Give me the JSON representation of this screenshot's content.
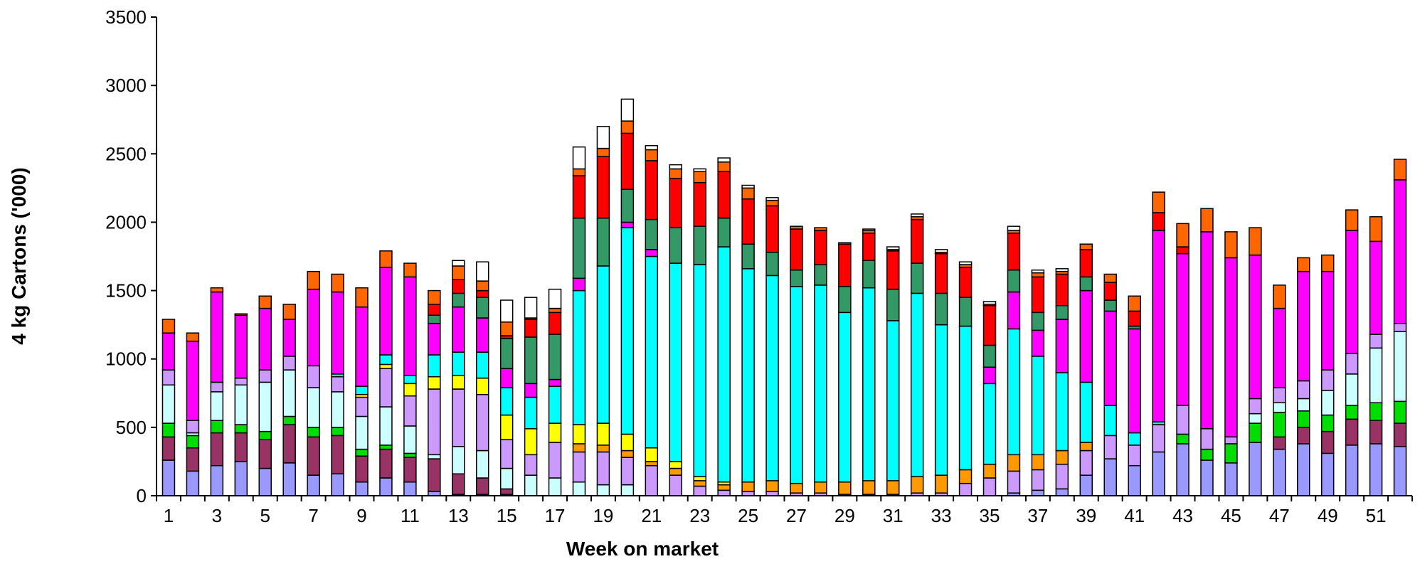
{
  "chart_data": {
    "type": "bar",
    "stacked": true,
    "title": "",
    "xlabel": "Week on market",
    "ylabel": "4 kg Cartons ('000)",
    "ylim": [
      0,
      3500
    ],
    "yticks": [
      0,
      500,
      1000,
      1500,
      2000,
      2500,
      3000,
      3500
    ],
    "xtick_labels_every": 2,
    "grid": false,
    "legend": "none",
    "categories": [
      "1",
      "2",
      "3",
      "4",
      "5",
      "6",
      "7",
      "8",
      "9",
      "10",
      "11",
      "12",
      "13",
      "14",
      "15",
      "16",
      "17",
      "18",
      "19",
      "20",
      "21",
      "22",
      "23",
      "24",
      "25",
      "26",
      "27",
      "28",
      "29",
      "30",
      "31",
      "32",
      "33",
      "34",
      "35",
      "36",
      "37",
      "38",
      "39",
      "40",
      "41",
      "42",
      "43",
      "44",
      "45",
      "46",
      "47",
      "48",
      "49",
      "50",
      "51",
      "52"
    ],
    "series": [
      {
        "color": "#9999ff",
        "values": [
          260,
          180,
          220,
          250,
          200,
          240,
          150,
          160,
          100,
          130,
          100,
          30,
          10,
          10,
          10,
          0,
          0,
          0,
          0,
          0,
          0,
          0,
          0,
          0,
          0,
          0,
          0,
          0,
          0,
          0,
          0,
          0,
          0,
          0,
          0,
          20,
          40,
          50,
          150,
          270,
          220,
          320,
          380,
          260,
          240,
          390,
          340,
          380,
          310,
          370,
          380,
          360
        ]
      },
      {
        "color": "#993366",
        "values": [
          170,
          170,
          240,
          210,
          210,
          280,
          280,
          280,
          190,
          210,
          180,
          240,
          150,
          120,
          40,
          0,
          0,
          0,
          0,
          0,
          0,
          0,
          0,
          0,
          0,
          0,
          0,
          0,
          0,
          0,
          0,
          0,
          0,
          0,
          0,
          0,
          0,
          0,
          0,
          0,
          0,
          0,
          0,
          0,
          0,
          0,
          90,
          120,
          160,
          190,
          170,
          170
        ]
      },
      {
        "color": "#00dd00",
        "values": [
          100,
          90,
          90,
          60,
          60,
          60,
          70,
          60,
          50,
          30,
          30,
          0,
          0,
          0,
          0,
          0,
          0,
          0,
          0,
          0,
          0,
          0,
          0,
          0,
          0,
          0,
          0,
          0,
          0,
          0,
          0,
          0,
          0,
          0,
          0,
          0,
          0,
          0,
          0,
          0,
          0,
          0,
          70,
          80,
          140,
          140,
          180,
          120,
          120,
          100,
          130,
          160
        ]
      },
      {
        "color": "#ccffff",
        "values": [
          280,
          20,
          210,
          290,
          360,
          340,
          290,
          260,
          240,
          280,
          200,
          30,
          200,
          200,
          150,
          150,
          130,
          100,
          80,
          80,
          0,
          0,
          0,
          0,
          0,
          0,
          0,
          0,
          0,
          0,
          0,
          0,
          0,
          0,
          0,
          0,
          0,
          0,
          0,
          0,
          0,
          0,
          0,
          0,
          0,
          70,
          70,
          90,
          180,
          230,
          400,
          510
        ]
      },
      {
        "color": "#cc99ff",
        "values": [
          110,
          90,
          70,
          50,
          90,
          100,
          160,
          110,
          140,
          280,
          220,
          480,
          420,
          410,
          210,
          150,
          260,
          220,
          240,
          200,
          220,
          150,
          70,
          40,
          30,
          30,
          20,
          20,
          10,
          10,
          10,
          20,
          20,
          90,
          130,
          160,
          150,
          180,
          180,
          170,
          150,
          200,
          210,
          150,
          50,
          110,
          110,
          130,
          150,
          150,
          100,
          60
        ]
      },
      {
        "color": "#ff9900",
        "values": [
          0,
          0,
          0,
          0,
          0,
          0,
          0,
          0,
          0,
          0,
          0,
          0,
          0,
          0,
          0,
          0,
          0,
          60,
          50,
          50,
          30,
          50,
          40,
          40,
          70,
          80,
          70,
          80,
          90,
          100,
          100,
          120,
          130,
          100,
          100,
          120,
          110,
          100,
          60,
          0,
          0,
          0,
          0,
          0,
          0,
          0,
          0,
          0,
          0,
          0,
          0,
          0
        ]
      },
      {
        "color": "#ffff00",
        "values": [
          0,
          0,
          0,
          0,
          0,
          0,
          0,
          0,
          20,
          30,
          90,
          90,
          100,
          120,
          180,
          190,
          140,
          140,
          160,
          120,
          100,
          50,
          30,
          20,
          0,
          0,
          0,
          0,
          0,
          0,
          0,
          0,
          0,
          0,
          0,
          0,
          0,
          0,
          0,
          0,
          0,
          0,
          0,
          0,
          0,
          0,
          0,
          0,
          0,
          0,
          0,
          0
        ]
      },
      {
        "color": "#00ffff",
        "values": [
          0,
          0,
          0,
          0,
          0,
          0,
          0,
          20,
          60,
          70,
          60,
          160,
          170,
          190,
          200,
          230,
          270,
          980,
          1150,
          1510,
          1400,
          1450,
          1550,
          1720,
          1560,
          1500,
          1440,
          1440,
          1240,
          1410,
          1170,
          1340,
          1100,
          1050,
          590,
          920,
          720,
          570,
          440,
          220,
          90,
          20,
          0,
          0,
          0,
          0,
          0,
          0,
          0,
          0,
          0,
          0
        ]
      },
      {
        "color": "#ff00ff",
        "values": [
          270,
          580,
          660,
          460,
          450,
          270,
          560,
          600,
          580,
          640,
          720,
          230,
          330,
          250,
          140,
          100,
          50,
          90,
          0,
          40,
          50,
          0,
          0,
          0,
          0,
          0,
          0,
          0,
          0,
          0,
          0,
          0,
          0,
          0,
          120,
          270,
          190,
          390,
          670,
          690,
          760,
          1400,
          1110,
          1440,
          1310,
          1050,
          580,
          800,
          720,
          900,
          680,
          1050
        ]
      },
      {
        "color": "#339966",
        "values": [
          0,
          0,
          0,
          0,
          0,
          0,
          0,
          0,
          0,
          0,
          0,
          60,
          100,
          150,
          220,
          340,
          330,
          440,
          350,
          240,
          220,
          260,
          280,
          210,
          180,
          170,
          120,
          150,
          190,
          200,
          230,
          220,
          230,
          210,
          160,
          160,
          130,
          100,
          100,
          80,
          20,
          0,
          0,
          0,
          0,
          0,
          0,
          0,
          0,
          0,
          0,
          0
        ]
      },
      {
        "color": "#ff0000",
        "values": [
          0,
          0,
          0,
          0,
          0,
          0,
          0,
          0,
          0,
          0,
          0,
          80,
          100,
          50,
          20,
          130,
          160,
          310,
          450,
          410,
          430,
          360,
          320,
          340,
          330,
          340,
          300,
          250,
          310,
          200,
          280,
          320,
          290,
          220,
          290,
          270,
          260,
          230,
          200,
          130,
          110,
          130,
          50,
          0,
          0,
          0,
          0,
          0,
          0,
          0,
          0,
          0
        ]
      },
      {
        "color": "#ff6600",
        "values": [
          100,
          60,
          30,
          10,
          90,
          110,
          130,
          130,
          140,
          120,
          100,
          100,
          100,
          70,
          100,
          10,
          30,
          50,
          60,
          90,
          80,
          70,
          80,
          70,
          80,
          40,
          20,
          20,
          10,
          20,
          10,
          20,
          10,
          20,
          10,
          20,
          30,
          20,
          40,
          60,
          110,
          150,
          170,
          170,
          190,
          200,
          170,
          100,
          120,
          150,
          180,
          150
        ]
      },
      {
        "color": "#ffffff",
        "values": [
          0,
          0,
          0,
          0,
          0,
          0,
          0,
          0,
          0,
          0,
          0,
          0,
          40,
          140,
          160,
          150,
          140,
          160,
          160,
          160,
          30,
          30,
          20,
          30,
          20,
          20,
          0,
          0,
          0,
          10,
          20,
          20,
          20,
          20,
          20,
          30,
          20,
          20,
          0,
          0,
          0,
          0,
          0,
          0,
          0,
          0,
          0,
          0,
          0,
          0,
          0,
          0
        ]
      }
    ]
  }
}
